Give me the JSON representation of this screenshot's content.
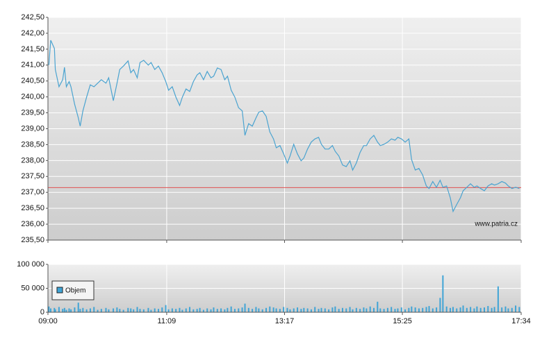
{
  "chart_data": [
    {
      "type": "line",
      "annotation": "www.patria.cz",
      "series": [
        {
          "color": "#4aa3d0",
          "x": [
            541,
            543,
            547,
            548,
            552,
            556,
            558,
            560,
            563,
            565,
            569,
            573,
            575,
            578,
            582,
            586,
            590,
            594,
            598,
            603,
            606,
            611,
            615,
            618,
            622,
            627,
            630,
            633,
            637,
            640,
            644,
            649,
            652,
            656,
            660,
            664,
            668,
            671,
            675,
            679,
            683,
            686,
            690,
            694,
            698,
            702,
            705,
            709,
            713,
            717,
            720,
            724,
            728,
            732,
            735,
            739,
            743,
            747,
            751,
            754,
            758,
            762,
            766,
            769,
            773,
            777,
            781,
            785,
            788,
            792,
            796,
            800,
            803,
            807,
            811,
            815,
            818,
            822,
            826,
            830,
            834,
            837,
            841,
            845,
            849,
            852,
            856,
            860,
            864,
            868,
            871,
            875,
            879,
            883,
            886,
            890,
            894,
            898,
            901,
            905,
            909,
            913,
            917,
            920,
            924,
            928,
            932,
            935,
            939,
            943,
            947,
            951,
            954,
            958,
            962,
            966,
            969,
            973,
            977,
            980,
            984,
            988,
            991,
            995,
            999,
            1003,
            1006,
            1010,
            1014,
            1018,
            1022,
            1025,
            1029,
            1033,
            1037,
            1040,
            1044,
            1048,
            1052
          ],
          "values": [
            241.0,
            241.78,
            241.52,
            240.86,
            240.32,
            240.54,
            240.93,
            240.32,
            240.48,
            240.32,
            239.77,
            239.34,
            239.08,
            239.56,
            239.99,
            240.38,
            240.32,
            240.43,
            240.54,
            240.43,
            240.6,
            239.88,
            240.43,
            240.86,
            240.97,
            241.13,
            240.76,
            240.86,
            240.6,
            241.08,
            241.15,
            241.0,
            241.08,
            240.86,
            240.97,
            240.76,
            240.48,
            240.21,
            240.32,
            239.99,
            239.73,
            239.99,
            240.25,
            240.17,
            240.48,
            240.69,
            240.76,
            240.54,
            240.8,
            240.6,
            240.65,
            240.91,
            240.86,
            240.54,
            240.65,
            240.21,
            239.99,
            239.66,
            239.56,
            238.79,
            239.16,
            239.08,
            239.34,
            239.52,
            239.56,
            239.39,
            238.9,
            238.68,
            238.4,
            238.47,
            238.21,
            237.92,
            238.14,
            238.51,
            238.21,
            237.99,
            238.08,
            238.36,
            238.58,
            238.68,
            238.73,
            238.51,
            238.36,
            238.36,
            238.47,
            238.29,
            238.14,
            237.86,
            237.81,
            237.99,
            237.7,
            237.92,
            238.25,
            238.47,
            238.47,
            238.68,
            238.79,
            238.58,
            238.47,
            238.51,
            238.58,
            238.68,
            238.64,
            238.73,
            238.68,
            238.58,
            238.68,
            238.03,
            237.7,
            237.75,
            237.55,
            237.2,
            237.12,
            237.34,
            237.16,
            237.38,
            237.16,
            237.2,
            236.83,
            236.4,
            236.62,
            236.83,
            237.05,
            237.16,
            237.27,
            237.16,
            237.2,
            237.12,
            237.05,
            237.2,
            237.27,
            237.23,
            237.27,
            237.34,
            237.29,
            237.2,
            237.12,
            237.16,
            237.12
          ]
        }
      ],
      "reference_line": {
        "value": 237.15,
        "color": "#e05050"
      },
      "xlim": [
        540,
        1054
      ],
      "ylim": [
        235.5,
        242.5
      ],
      "yticks": [
        {
          "value": 235.5,
          "label": "235,50"
        },
        {
          "value": 236,
          "label": "236,00"
        },
        {
          "value": 236.5,
          "label": "236,50"
        },
        {
          "value": 237,
          "label": "237,00"
        },
        {
          "value": 237.5,
          "label": "237,50"
        },
        {
          "value": 238,
          "label": "238,00"
        },
        {
          "value": 238.5,
          "label": "238,50"
        },
        {
          "value": 239,
          "label": "239,00"
        },
        {
          "value": 239.5,
          "label": "239,50"
        },
        {
          "value": 240,
          "label": "240,00"
        },
        {
          "value": 240.5,
          "label": "240,50"
        },
        {
          "value": 241,
          "label": "241,00"
        },
        {
          "value": 241.5,
          "label": "241,50"
        },
        {
          "value": 242,
          "label": "242,00"
        },
        {
          "value": 242.5,
          "label": "242,50"
        }
      ],
      "grid": true
    },
    {
      "type": "bar",
      "legend": "upper left",
      "series": [
        {
          "name": "Objem",
          "color": "#3fa4d6",
          "x": [
            541,
            543,
            547,
            548,
            552,
            556,
            558,
            560,
            563,
            565,
            569,
            573,
            575,
            578,
            582,
            586,
            590,
            594,
            598,
            603,
            606,
            611,
            615,
            618,
            622,
            627,
            630,
            633,
            637,
            640,
            644,
            649,
            652,
            656,
            660,
            664,
            668,
            671,
            675,
            679,
            683,
            686,
            690,
            694,
            698,
            702,
            705,
            709,
            713,
            717,
            720,
            724,
            728,
            732,
            735,
            739,
            743,
            747,
            751,
            754,
            758,
            762,
            766,
            769,
            773,
            777,
            781,
            785,
            788,
            792,
            796,
            800,
            803,
            807,
            811,
            815,
            818,
            822,
            826,
            830,
            834,
            837,
            841,
            845,
            849,
            852,
            856,
            860,
            864,
            868,
            871,
            875,
            879,
            883,
            886,
            890,
            894,
            898,
            901,
            905,
            909,
            913,
            917,
            920,
            924,
            928,
            932,
            935,
            939,
            943,
            947,
            951,
            954,
            958,
            962,
            966,
            969,
            973,
            977,
            980,
            984,
            988,
            991,
            995,
            999,
            1003,
            1006,
            1010,
            1014,
            1018,
            1022,
            1025,
            1029,
            1033,
            1037,
            1040,
            1044,
            1048,
            1052
          ],
          "values": [
            12000,
            8000,
            9000,
            6000,
            11000,
            7000,
            9000,
            5000,
            8000,
            6000,
            10000,
            20000,
            7000,
            9000,
            6000,
            8000,
            11000,
            5000,
            7000,
            9000,
            6000,
            8000,
            10000,
            7000,
            5000,
            9000,
            8000,
            6000,
            11000,
            7000,
            6000,
            9000,
            5000,
            8000,
            7000,
            10000,
            15000,
            6000,
            8000,
            7000,
            9000,
            5000,
            8000,
            11000,
            6000,
            7000,
            9000,
            5000,
            8000,
            6000,
            10000,
            7000,
            8000,
            6000,
            9000,
            12000,
            7000,
            8000,
            10000,
            18000,
            9000,
            7000,
            11000,
            8000,
            6000,
            9000,
            12000,
            10000,
            8000,
            7000,
            11000,
            9000,
            6000,
            8000,
            10000,
            7000,
            9000,
            8000,
            6000,
            11000,
            7000,
            9000,
            8000,
            6000,
            10000,
            12000,
            7000,
            9000,
            8000,
            11000,
            6000,
            9000,
            7000,
            10000,
            8000,
            12000,
            9000,
            22000,
            8000,
            7000,
            9000,
            11000,
            7000,
            8000,
            10000,
            6000,
            9000,
            12000,
            10000,
            8000,
            9000,
            11000,
            13000,
            8000,
            10000,
            30000,
            77000,
            12000,
            9000,
            11000,
            8000,
            10000,
            14000,
            9000,
            11000,
            8000,
            12000,
            9000,
            10000,
            13000,
            9000,
            11000,
            54000,
            10000,
            12000,
            8000,
            9000,
            14000,
            11000
          ]
        }
      ],
      "xlim": [
        540,
        1054
      ],
      "xticks": [
        {
          "value": 540,
          "label": "09:00"
        },
        {
          "value": 669,
          "label": "11:09"
        },
        {
          "value": 797,
          "label": "13:17"
        },
        {
          "value": 925,
          "label": "15:25"
        },
        {
          "value": 1054,
          "label": "17:34"
        }
      ],
      "ylim": [
        0,
        100000
      ],
      "yticks": [
        0,
        {
          "value": 50000,
          "label": "50 000"
        },
        {
          "value": 100000,
          "label": "100 000"
        }
      ],
      "grid": true
    }
  ]
}
